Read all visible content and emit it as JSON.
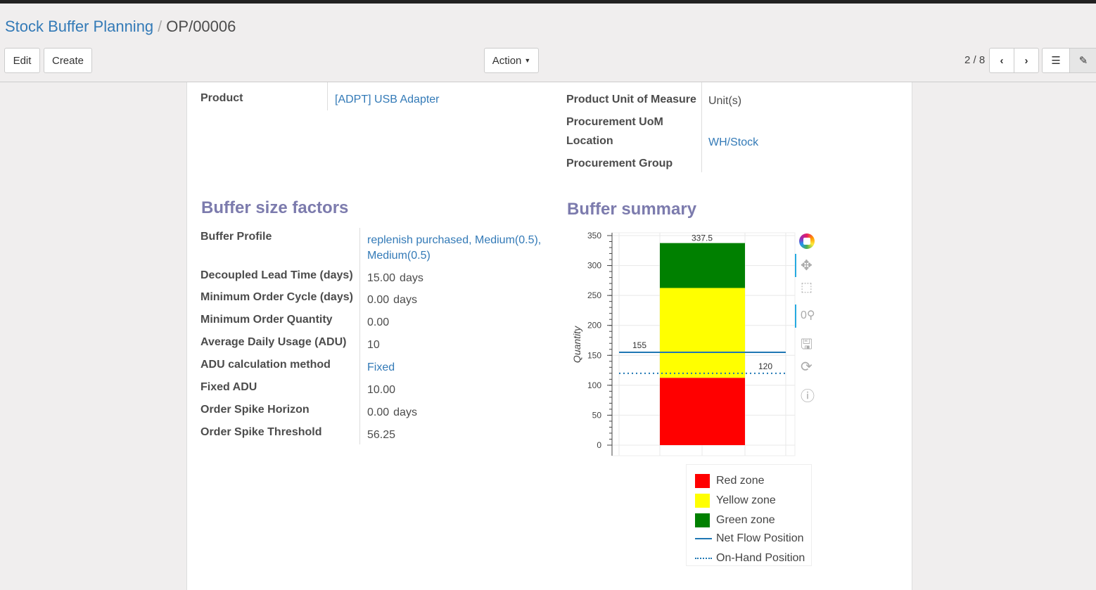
{
  "breadcrumb": {
    "parent": "Stock Buffer Planning",
    "current": "OP/00006"
  },
  "toolbar": {
    "edit": "Edit",
    "create": "Create",
    "action": "Action",
    "pager": "2 / 8"
  },
  "fields_left": [
    {
      "label": "Product",
      "value": "[ADPT] USB Adapter",
      "link": true
    }
  ],
  "fields_right": [
    {
      "label": "Product Unit of Measure",
      "value": "Unit(s)"
    },
    {
      "label": "Procurement UoM",
      "value": ""
    },
    {
      "label": "Location",
      "value": "WH/Stock"
    },
    {
      "label": "Procurement Group",
      "value": ""
    }
  ],
  "factors": {
    "title": "Buffer size factors",
    "rows": [
      {
        "label": "Buffer Profile",
        "value": "replenish purchased, Medium(0.5), Medium(0.5)",
        "link": true
      },
      {
        "label": "Decoupled Lead Time (days)",
        "value": "15.00",
        "unit": "days"
      },
      {
        "label": "Minimum Order Cycle (days)",
        "value": "0.00",
        "unit": "days"
      },
      {
        "label": "Minimum Order Quantity",
        "value": "0.00"
      },
      {
        "label": "Average Daily Usage (ADU)",
        "value": "10"
      },
      {
        "label": "ADU calculation method",
        "value": "Fixed",
        "link": true
      },
      {
        "label": "Fixed ADU",
        "value": "10.00"
      },
      {
        "label": "Order Spike Horizon",
        "value": "0.00",
        "unit": "days"
      },
      {
        "label": "Order Spike Threshold",
        "value": "56.25"
      }
    ]
  },
  "summary": {
    "title": "Buffer summary"
  },
  "chart_data": {
    "type": "bar",
    "stacked": true,
    "ylabel": "Quantity",
    "ylim": [
      0,
      350
    ],
    "yticks": [
      "0",
      "50",
      "100",
      "150",
      "200",
      "250",
      "300",
      "350"
    ],
    "grid": true,
    "series": [
      {
        "name": "Red zone",
        "from": 0,
        "to": 112.5,
        "color": "#ff0000",
        "label": "112.5"
      },
      {
        "name": "Yellow zone",
        "from": 112.5,
        "to": 262.5,
        "color": "#ffff00",
        "label": "262.5"
      },
      {
        "name": "Green zone",
        "from": 262.5,
        "to": 337.5,
        "color": "#008000",
        "label": "337.5"
      }
    ],
    "lines": [
      {
        "name": "Net Flow Position",
        "value": 155,
        "label": "155",
        "style": "solid",
        "color": "#1f77b4"
      },
      {
        "name": "On-Hand Position",
        "value": 120,
        "label": "120",
        "style": "dotted",
        "color": "#1f77b4"
      }
    ],
    "legend_position": "bottom"
  },
  "chart_tools": [
    "bokeh-logo",
    "pan-icon",
    "box-zoom-icon",
    "wheel-zoom-icon",
    "save-icon",
    "reset-icon",
    "help-icon"
  ]
}
